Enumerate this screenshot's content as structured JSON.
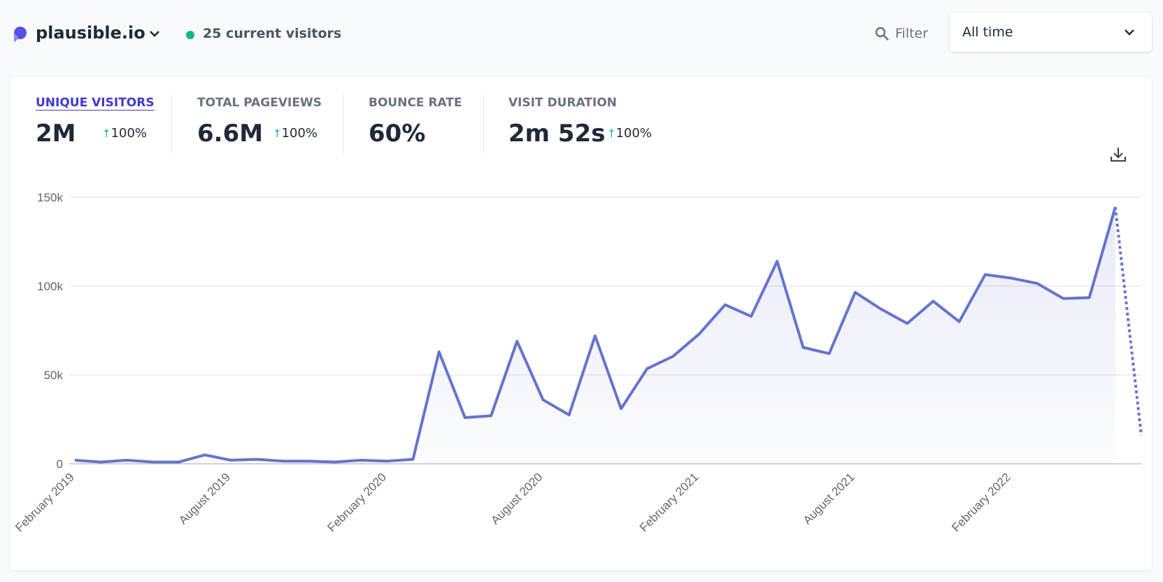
{
  "header": {
    "site": "plausible.io",
    "current_visitors": "25 current visitors",
    "filter": "Filter",
    "period": "All time"
  },
  "metrics": [
    {
      "label": "UNIQUE VISITORS",
      "value": "2M",
      "change": "100%"
    },
    {
      "label": "TOTAL PAGEVIEWS",
      "value": "6.6M",
      "change": "100%"
    },
    {
      "label": "BOUNCE RATE",
      "value": "60%"
    },
    {
      "label": "VISIT DURATION",
      "value": "2m 52s",
      "change": "100%"
    }
  ],
  "chart_data": {
    "type": "line",
    "categories": [
      "February 2019",
      null,
      null,
      null,
      null,
      null,
      "August 2019",
      null,
      null,
      null,
      null,
      null,
      "February 2020",
      null,
      null,
      null,
      null,
      null,
      "August 2020",
      null,
      null,
      null,
      null,
      null,
      "February 2021",
      null,
      null,
      null,
      null,
      null,
      "August 2021",
      null,
      null,
      null,
      null,
      null,
      "February 2022",
      null,
      null,
      null,
      null,
      null
    ],
    "values": [
      2000,
      1000,
      2000,
      1000,
      1000,
      5000,
      2000,
      2500,
      1500,
      1500,
      1000,
      2000,
      1500,
      2500,
      63000,
      26000,
      27000,
      69000,
      36000,
      27500,
      72000,
      31000,
      53500,
      60500,
      73000,
      89500,
      83000,
      114000,
      65500,
      62000,
      96500,
      87000,
      79000,
      91500,
      80000,
      106500,
      104500,
      101500,
      93000,
      93500,
      144500,
      16000
    ],
    "color": "#6574cd",
    "incomplete_last_point": true,
    "ylim": [
      0,
      150000
    ],
    "yticks": [
      0,
      {
        "value": 50000,
        "label": "50k"
      },
      {
        "value": 100000,
        "label": "100k"
      },
      {
        "value": 150000,
        "label": "150k"
      }
    ],
    "grid": true
  }
}
